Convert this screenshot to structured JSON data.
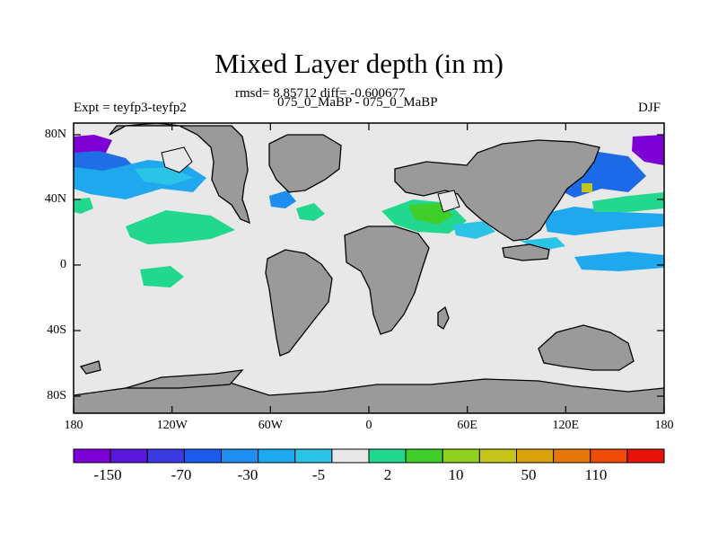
{
  "title": "Mixed Layer depth (in m)",
  "stats": "rmsd= 8.85712 diff= -0.600677",
  "subtitle": "075_0_MaBP - 075_0_MaBP",
  "expt": "Expt = teyfp3-teyfp2",
  "season": "DJF",
  "colors": {
    "land": "#9a9a9a",
    "ocean_neutral": "#e8e8e8",
    "frame": "#000000"
  },
  "y_ticks": [
    "80N",
    "40N",
    "0",
    "40S",
    "80S"
  ],
  "x_ticks": [
    "180",
    "120W",
    "60W",
    "0",
    "60E",
    "120E",
    "180"
  ],
  "colorbar": {
    "colors": [
      "#7d00d4",
      "#5a18dc",
      "#3a3ae2",
      "#1c5aee",
      "#1f8ef0",
      "#1ca9ee",
      "#2cc4e6",
      "#e8e8e8",
      "#22d88e",
      "#3fce2a",
      "#8fd020",
      "#c4c41a",
      "#d8a20e",
      "#e6780a",
      "#ee4a08",
      "#e81208"
    ],
    "labels": [
      "-150",
      "-70",
      "-30",
      "-5",
      "2",
      "10",
      "50",
      "110"
    ]
  }
}
